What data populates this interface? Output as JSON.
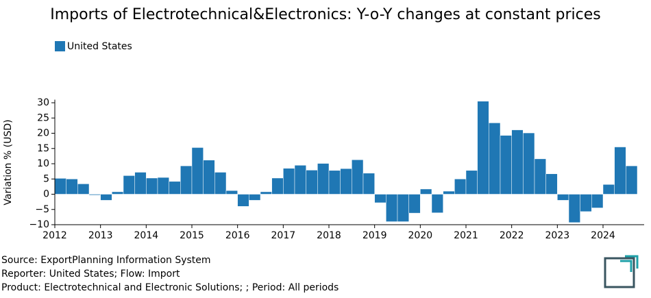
{
  "chart_data": {
    "type": "bar",
    "title": "Imports of Electrotechnical&Electronics: Y-o-Y changes at constant prices",
    "y_label": "Variation % (USD)",
    "categories": [
      "2012",
      null,
      null,
      null,
      "2013",
      null,
      null,
      null,
      "2014",
      null,
      null,
      null,
      "2015",
      null,
      null,
      null,
      "2016",
      null,
      null,
      null,
      "2017",
      null,
      null,
      null,
      "2018",
      null,
      null,
      null,
      "2019",
      null,
      null,
      null,
      "2020",
      null,
      null,
      null,
      "2021",
      null,
      null,
      null,
      "2022",
      null,
      null,
      null,
      "2023",
      null,
      null,
      null,
      "2024",
      null,
      null
    ],
    "series": [
      {
        "name": "United States",
        "color": "#1f77b4",
        "values": [
          5.2,
          5.0,
          3.4,
          -0.3,
          -2.0,
          0.8,
          6.1,
          7.2,
          5.3,
          5.5,
          4.2,
          9.3,
          15.3,
          11.2,
          7.2,
          1.2,
          -4.0,
          -2.0,
          0.8,
          5.3,
          8.5,
          9.5,
          7.9,
          10.1,
          7.8,
          8.4,
          11.3,
          6.9,
          -2.8,
          -9.0,
          -9.0,
          -6.2,
          1.7,
          -6.1,
          1.0,
          5.0,
          7.8,
          30.5,
          23.4,
          19.3,
          21.1,
          20.1,
          11.6,
          6.7,
          -2.0,
          -9.3,
          -5.7,
          -4.5,
          3.2,
          15.5,
          9.3
        ]
      }
    ],
    "ylim": [
      -10,
      31
    ],
    "yticks": [
      {
        "value": -10,
        "label": "−10"
      },
      {
        "value": -5,
        "label": "−5"
      },
      0,
      5,
      10,
      15,
      20,
      25,
      30
    ],
    "legend": "top-left",
    "footer": [
      "Source: ExportPlanning Information System",
      "Reporter: United States; Flow: Import",
      "Product: Electrotechnical and Electronic Solutions; ; Period: All periods"
    ]
  }
}
